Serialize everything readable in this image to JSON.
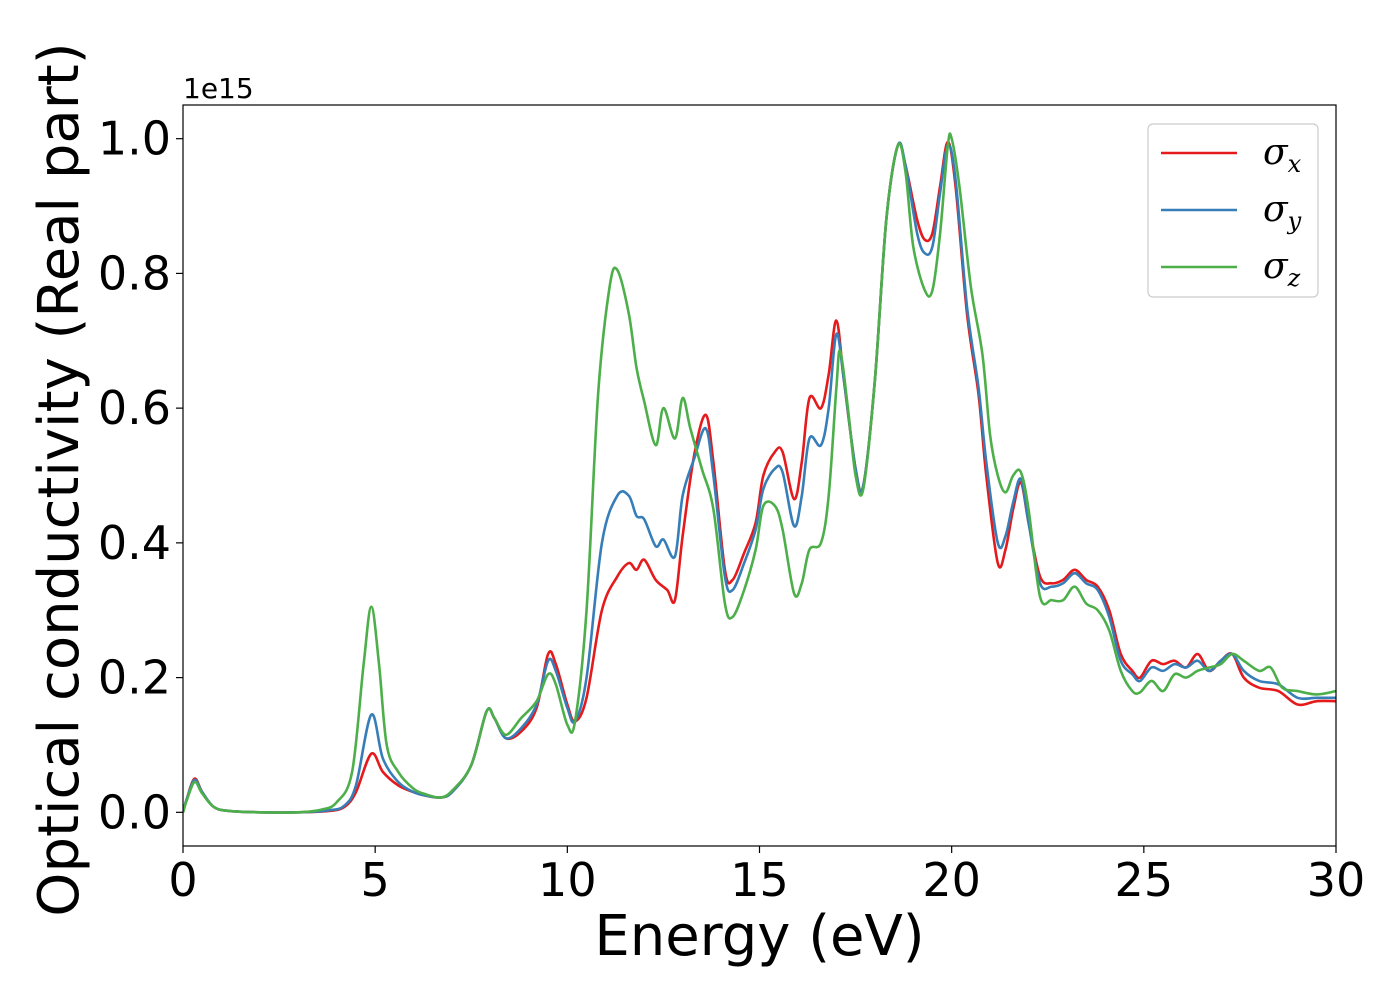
{
  "chart_data": {
    "type": "line",
    "title": "",
    "xlabel": "Energy (eV)",
    "ylabel": "Optical conductivity (Real part)",
    "y_offset_label": "1e15",
    "xlim": [
      0,
      30
    ],
    "ylim": [
      -0.05,
      1.05
    ],
    "x_ticks": [
      0,
      5,
      10,
      15,
      20,
      25,
      30
    ],
    "x_tick_labels": [
      "0",
      "5",
      "10",
      "15",
      "20",
      "25",
      "30"
    ],
    "y_ticks": [
      0.0,
      0.2,
      0.4,
      0.6,
      0.8,
      1.0
    ],
    "y_tick_labels": [
      "0.0",
      "0.2",
      "0.4",
      "0.6",
      "0.8",
      "1.0"
    ],
    "grid": false,
    "legend_position": "top-right",
    "series": [
      {
        "name": "σx",
        "symbol": "σ",
        "subscript": "x",
        "color": "#e41a1c",
        "points": [
          [
            0,
            0.0
          ],
          [
            0.1,
            0.02
          ],
          [
            0.3,
            0.05
          ],
          [
            0.5,
            0.03
          ],
          [
            0.8,
            0.008
          ],
          [
            1.2,
            0.002
          ],
          [
            2,
            0.0
          ],
          [
            3,
            0.0
          ],
          [
            3.8,
            0.002
          ],
          [
            4.2,
            0.008
          ],
          [
            4.5,
            0.03
          ],
          [
            4.9,
            0.087
          ],
          [
            5.2,
            0.06
          ],
          [
            5.6,
            0.04
          ],
          [
            6.0,
            0.03
          ],
          [
            6.3,
            0.025
          ],
          [
            6.7,
            0.022
          ],
          [
            7.0,
            0.03
          ],
          [
            7.5,
            0.07
          ],
          [
            7.9,
            0.15
          ],
          [
            8.1,
            0.14
          ],
          [
            8.4,
            0.11
          ],
          [
            8.8,
            0.12
          ],
          [
            9.2,
            0.155
          ],
          [
            9.5,
            0.235
          ],
          [
            9.7,
            0.22
          ],
          [
            10.0,
            0.16
          ],
          [
            10.2,
            0.135
          ],
          [
            10.5,
            0.17
          ],
          [
            10.9,
            0.3
          ],
          [
            11.3,
            0.35
          ],
          [
            11.6,
            0.37
          ],
          [
            11.8,
            0.36
          ],
          [
            12.0,
            0.375
          ],
          [
            12.3,
            0.345
          ],
          [
            12.6,
            0.33
          ],
          [
            12.8,
            0.315
          ],
          [
            13.0,
            0.41
          ],
          [
            13.3,
            0.53
          ],
          [
            13.6,
            0.59
          ],
          [
            13.8,
            0.52
          ],
          [
            14.1,
            0.36
          ],
          [
            14.3,
            0.345
          ],
          [
            14.6,
            0.385
          ],
          [
            14.9,
            0.43
          ],
          [
            15.1,
            0.5
          ],
          [
            15.4,
            0.535
          ],
          [
            15.6,
            0.535
          ],
          [
            15.9,
            0.465
          ],
          [
            16.1,
            0.52
          ],
          [
            16.3,
            0.615
          ],
          [
            16.6,
            0.6
          ],
          [
            16.8,
            0.65
          ],
          [
            17.0,
            0.73
          ],
          [
            17.2,
            0.64
          ],
          [
            17.5,
            0.51
          ],
          [
            17.7,
            0.485
          ],
          [
            18.0,
            0.64
          ],
          [
            18.3,
            0.88
          ],
          [
            18.6,
            0.99
          ],
          [
            18.8,
            0.96
          ],
          [
            19.1,
            0.88
          ],
          [
            19.3,
            0.85
          ],
          [
            19.5,
            0.86
          ],
          [
            19.7,
            0.93
          ],
          [
            19.9,
            0.995
          ],
          [
            20.1,
            0.93
          ],
          [
            20.4,
            0.74
          ],
          [
            20.7,
            0.62
          ],
          [
            20.9,
            0.5
          ],
          [
            21.2,
            0.37
          ],
          [
            21.4,
            0.39
          ],
          [
            21.6,
            0.45
          ],
          [
            21.8,
            0.49
          ],
          [
            22.0,
            0.43
          ],
          [
            22.3,
            0.35
          ],
          [
            22.6,
            0.34
          ],
          [
            22.9,
            0.345
          ],
          [
            23.2,
            0.36
          ],
          [
            23.5,
            0.345
          ],
          [
            23.8,
            0.335
          ],
          [
            24.1,
            0.3
          ],
          [
            24.4,
            0.235
          ],
          [
            24.7,
            0.21
          ],
          [
            24.9,
            0.2
          ],
          [
            25.2,
            0.225
          ],
          [
            25.5,
            0.22
          ],
          [
            25.8,
            0.225
          ],
          [
            26.1,
            0.215
          ],
          [
            26.4,
            0.235
          ],
          [
            26.7,
            0.21
          ],
          [
            27.0,
            0.225
          ],
          [
            27.3,
            0.235
          ],
          [
            27.6,
            0.2
          ],
          [
            28.0,
            0.185
          ],
          [
            28.5,
            0.18
          ],
          [
            29.0,
            0.16
          ],
          [
            29.5,
            0.165
          ],
          [
            30.0,
            0.165
          ]
        ]
      },
      {
        "name": "σy",
        "symbol": "σ",
        "subscript": "y",
        "color": "#377eb8",
        "points": [
          [
            0,
            0.0
          ],
          [
            0.1,
            0.02
          ],
          [
            0.3,
            0.048
          ],
          [
            0.5,
            0.03
          ],
          [
            0.8,
            0.008
          ],
          [
            1.2,
            0.002
          ],
          [
            2,
            0.0
          ],
          [
            3,
            0.0
          ],
          [
            3.8,
            0.003
          ],
          [
            4.2,
            0.01
          ],
          [
            4.5,
            0.04
          ],
          [
            4.9,
            0.145
          ],
          [
            5.2,
            0.08
          ],
          [
            5.6,
            0.045
          ],
          [
            6.0,
            0.03
          ],
          [
            6.3,
            0.025
          ],
          [
            6.7,
            0.022
          ],
          [
            7.0,
            0.03
          ],
          [
            7.5,
            0.07
          ],
          [
            7.9,
            0.15
          ],
          [
            8.1,
            0.14
          ],
          [
            8.4,
            0.11
          ],
          [
            8.8,
            0.125
          ],
          [
            9.2,
            0.16
          ],
          [
            9.5,
            0.225
          ],
          [
            9.7,
            0.21
          ],
          [
            10.0,
            0.155
          ],
          [
            10.2,
            0.135
          ],
          [
            10.5,
            0.2
          ],
          [
            10.9,
            0.4
          ],
          [
            11.3,
            0.47
          ],
          [
            11.6,
            0.47
          ],
          [
            11.8,
            0.44
          ],
          [
            12.0,
            0.435
          ],
          [
            12.3,
            0.395
          ],
          [
            12.5,
            0.405
          ],
          [
            12.8,
            0.38
          ],
          [
            13.0,
            0.47
          ],
          [
            13.3,
            0.525
          ],
          [
            13.6,
            0.57
          ],
          [
            13.8,
            0.5
          ],
          [
            14.1,
            0.35
          ],
          [
            14.3,
            0.33
          ],
          [
            14.6,
            0.37
          ],
          [
            14.9,
            0.42
          ],
          [
            15.1,
            0.48
          ],
          [
            15.4,
            0.51
          ],
          [
            15.6,
            0.505
          ],
          [
            15.9,
            0.425
          ],
          [
            16.1,
            0.47
          ],
          [
            16.3,
            0.555
          ],
          [
            16.6,
            0.545
          ],
          [
            16.8,
            0.6
          ],
          [
            17.0,
            0.71
          ],
          [
            17.2,
            0.64
          ],
          [
            17.5,
            0.51
          ],
          [
            17.7,
            0.485
          ],
          [
            18.0,
            0.64
          ],
          [
            18.3,
            0.88
          ],
          [
            18.6,
            0.99
          ],
          [
            18.8,
            0.96
          ],
          [
            19.1,
            0.86
          ],
          [
            19.3,
            0.83
          ],
          [
            19.5,
            0.84
          ],
          [
            19.7,
            0.92
          ],
          [
            19.9,
            0.99
          ],
          [
            20.1,
            0.94
          ],
          [
            20.4,
            0.75
          ],
          [
            20.7,
            0.63
          ],
          [
            20.9,
            0.52
          ],
          [
            21.2,
            0.4
          ],
          [
            21.4,
            0.41
          ],
          [
            21.6,
            0.46
          ],
          [
            21.8,
            0.495
          ],
          [
            22.0,
            0.43
          ],
          [
            22.3,
            0.34
          ],
          [
            22.6,
            0.335
          ],
          [
            22.9,
            0.34
          ],
          [
            23.2,
            0.355
          ],
          [
            23.5,
            0.34
          ],
          [
            23.8,
            0.33
          ],
          [
            24.1,
            0.29
          ],
          [
            24.4,
            0.225
          ],
          [
            24.7,
            0.205
          ],
          [
            24.9,
            0.195
          ],
          [
            25.2,
            0.215
          ],
          [
            25.5,
            0.21
          ],
          [
            25.8,
            0.22
          ],
          [
            26.1,
            0.215
          ],
          [
            26.4,
            0.225
          ],
          [
            26.7,
            0.21
          ],
          [
            27.0,
            0.225
          ],
          [
            27.3,
            0.235
          ],
          [
            27.6,
            0.21
          ],
          [
            28.0,
            0.195
          ],
          [
            28.5,
            0.19
          ],
          [
            29.0,
            0.17
          ],
          [
            29.5,
            0.17
          ],
          [
            30.0,
            0.17
          ]
        ]
      },
      {
        "name": "σz",
        "symbol": "σ",
        "subscript": "z",
        "color": "#4daf4a",
        "points": [
          [
            0,
            0.0
          ],
          [
            0.1,
            0.018
          ],
          [
            0.3,
            0.045
          ],
          [
            0.5,
            0.028
          ],
          [
            0.8,
            0.008
          ],
          [
            1.2,
            0.002
          ],
          [
            2,
            0.0
          ],
          [
            3,
            0.0
          ],
          [
            3.6,
            0.004
          ],
          [
            4.0,
            0.015
          ],
          [
            4.4,
            0.06
          ],
          [
            4.7,
            0.22
          ],
          [
            4.9,
            0.305
          ],
          [
            5.1,
            0.22
          ],
          [
            5.3,
            0.1
          ],
          [
            5.6,
            0.06
          ],
          [
            6.0,
            0.035
          ],
          [
            6.3,
            0.027
          ],
          [
            6.7,
            0.022
          ],
          [
            7.0,
            0.032
          ],
          [
            7.5,
            0.07
          ],
          [
            7.9,
            0.15
          ],
          [
            8.1,
            0.14
          ],
          [
            8.4,
            0.115
          ],
          [
            8.8,
            0.14
          ],
          [
            9.2,
            0.165
          ],
          [
            9.5,
            0.205
          ],
          [
            9.7,
            0.19
          ],
          [
            10.0,
            0.13
          ],
          [
            10.2,
            0.135
          ],
          [
            10.5,
            0.3
          ],
          [
            10.8,
            0.62
          ],
          [
            11.1,
            0.78
          ],
          [
            11.3,
            0.805
          ],
          [
            11.6,
            0.74
          ],
          [
            11.8,
            0.66
          ],
          [
            12.0,
            0.61
          ],
          [
            12.3,
            0.545
          ],
          [
            12.5,
            0.6
          ],
          [
            12.8,
            0.555
          ],
          [
            13.0,
            0.615
          ],
          [
            13.2,
            0.57
          ],
          [
            13.5,
            0.51
          ],
          [
            13.8,
            0.45
          ],
          [
            14.1,
            0.31
          ],
          [
            14.3,
            0.29
          ],
          [
            14.6,
            0.33
          ],
          [
            14.9,
            0.39
          ],
          [
            15.1,
            0.455
          ],
          [
            15.4,
            0.455
          ],
          [
            15.6,
            0.42
          ],
          [
            15.9,
            0.325
          ],
          [
            16.1,
            0.34
          ],
          [
            16.3,
            0.39
          ],
          [
            16.6,
            0.4
          ],
          [
            16.8,
            0.47
          ],
          [
            17.0,
            0.63
          ],
          [
            17.1,
            0.685
          ],
          [
            17.3,
            0.6
          ],
          [
            17.5,
            0.5
          ],
          [
            17.7,
            0.48
          ],
          [
            18.0,
            0.64
          ],
          [
            18.3,
            0.88
          ],
          [
            18.6,
            0.99
          ],
          [
            18.8,
            0.95
          ],
          [
            19.0,
            0.84
          ],
          [
            19.3,
            0.775
          ],
          [
            19.5,
            0.775
          ],
          [
            19.7,
            0.86
          ],
          [
            19.9,
            0.99
          ],
          [
            20.0,
            1.0
          ],
          [
            20.2,
            0.93
          ],
          [
            20.5,
            0.78
          ],
          [
            20.8,
            0.68
          ],
          [
            21.0,
            0.56
          ],
          [
            21.2,
            0.5
          ],
          [
            21.4,
            0.475
          ],
          [
            21.6,
            0.5
          ],
          [
            21.8,
            0.505
          ],
          [
            22.0,
            0.45
          ],
          [
            22.3,
            0.32
          ],
          [
            22.6,
            0.315
          ],
          [
            22.9,
            0.315
          ],
          [
            23.2,
            0.335
          ],
          [
            23.5,
            0.31
          ],
          [
            23.8,
            0.3
          ],
          [
            24.1,
            0.27
          ],
          [
            24.4,
            0.21
          ],
          [
            24.7,
            0.18
          ],
          [
            24.9,
            0.178
          ],
          [
            25.2,
            0.195
          ],
          [
            25.5,
            0.18
          ],
          [
            25.8,
            0.205
          ],
          [
            26.1,
            0.2
          ],
          [
            26.4,
            0.21
          ],
          [
            26.7,
            0.215
          ],
          [
            27.0,
            0.22
          ],
          [
            27.3,
            0.235
          ],
          [
            27.6,
            0.225
          ],
          [
            28.0,
            0.21
          ],
          [
            28.3,
            0.215
          ],
          [
            28.6,
            0.185
          ],
          [
            29.0,
            0.18
          ],
          [
            29.5,
            0.175
          ],
          [
            30.0,
            0.18
          ]
        ]
      }
    ]
  }
}
